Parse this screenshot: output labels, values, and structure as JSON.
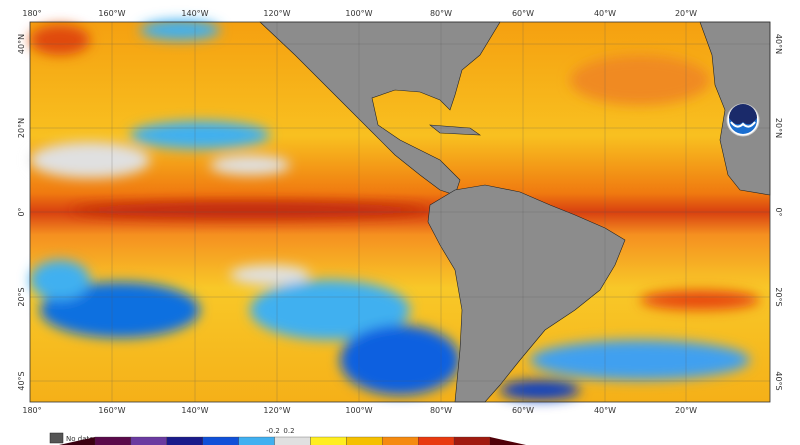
{
  "map": {
    "top_lon_labels": [
      "180°",
      "160°W",
      "140°W",
      "120°W",
      "100°W",
      "80°W",
      "60°W",
      "40°W",
      "20°W"
    ],
    "bottom_lon_labels": [
      "180°",
      "160°W",
      "140°W",
      "120°W",
      "100°W",
      "80°W",
      "60°W",
      "40°W",
      "20°W"
    ],
    "left_lat_labels": [
      "40°N",
      "20°N",
      "0°",
      "20°S",
      "40°S"
    ],
    "right_lat_labels": [
      "40°N",
      "20°N",
      "0°",
      "20°S",
      "40°S"
    ],
    "land_color": "#8c8c8c",
    "logo_text": "NOAA"
  },
  "legend": {
    "no_data_label": "No data",
    "no_data_color": "#555555",
    "colorbar_labels": [
      "-0.2",
      "0.2"
    ],
    "colorbar_colors": [
      "#3a0010",
      "#5a0a4a",
      "#6a3aa0",
      "#1a1a8a",
      "#1050d8",
      "#40b0f0",
      "#e0e0e0",
      "#ffee20",
      "#f5c000",
      "#f58a10",
      "#e83a10",
      "#a01a10",
      "#500008"
    ]
  }
}
